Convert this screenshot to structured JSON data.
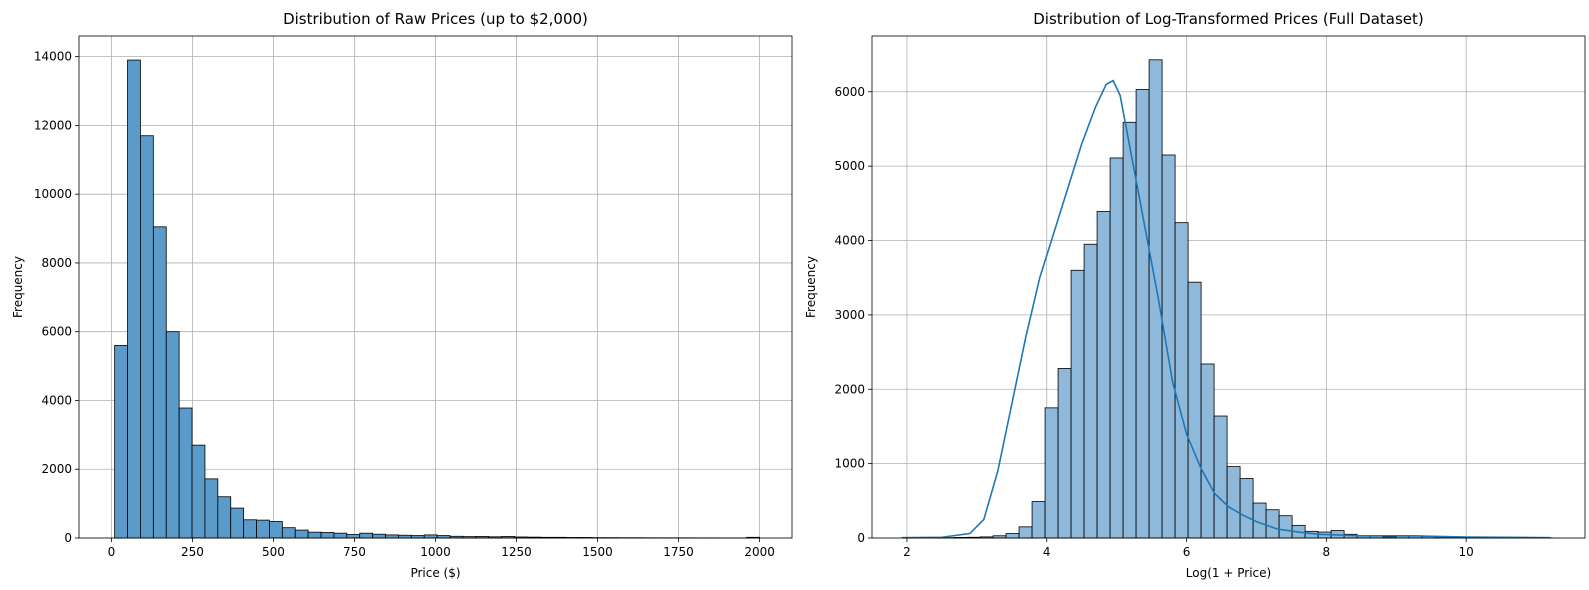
{
  "chart_data": [
    {
      "type": "bar",
      "title": "Distribution of Raw Prices (up to $2,000)",
      "xlabel": "Price ($)",
      "ylabel": "Frequency",
      "xlim": [
        -100,
        2100
      ],
      "ylim": [
        0,
        14600
      ],
      "xticks": [
        0,
        250,
        500,
        750,
        1000,
        1250,
        1500,
        1750,
        2000
      ],
      "yticks": [
        0,
        2000,
        4000,
        6000,
        8000,
        10000,
        12000,
        14000
      ],
      "grid": true,
      "bar_color": "#5b9bc9",
      "bin_edges_start": 10,
      "bin_width": 39.8,
      "values": [
        5600,
        13900,
        11700,
        9050,
        6000,
        3780,
        2700,
        1720,
        1200,
        870,
        530,
        520,
        480,
        300,
        230,
        170,
        160,
        140,
        100,
        140,
        110,
        90,
        80,
        70,
        90,
        70,
        50,
        40,
        45,
        35,
        45,
        30,
        25,
        20,
        20,
        15,
        15,
        10,
        10,
        8,
        8,
        6,
        5,
        5,
        5,
        4,
        4,
        3,
        3,
        20
      ]
    },
    {
      "type": "bar",
      "title": "Distribution of Log-Transformed Prices (Full Dataset)",
      "xlabel": "Log(1 + Price)",
      "ylabel": "Frequency",
      "xlim": [
        1.5,
        11.7
      ],
      "ylim": [
        0,
        6750
      ],
      "xticks": [
        2,
        4,
        6,
        8,
        10
      ],
      "yticks": [
        0,
        1000,
        2000,
        3000,
        4000,
        5000,
        6000
      ],
      "grid": true,
      "bar_color": "#8fb9db",
      "kde_color": "#1f77b4",
      "bin_edges_start": 1.93,
      "bin_width": 0.186,
      "values": [
        3,
        3,
        3,
        5,
        8,
        10,
        15,
        30,
        60,
        150,
        490,
        1750,
        2280,
        3600,
        3950,
        4390,
        5110,
        5590,
        6030,
        6430,
        5150,
        4240,
        3440,
        2340,
        1640,
        960,
        800,
        470,
        380,
        300,
        170,
        90,
        80,
        100,
        50,
        30,
        25,
        15,
        25,
        30,
        20,
        15,
        10,
        5,
        5,
        3,
        3,
        3,
        3,
        2
      ],
      "kde_x": [
        1.93,
        2.5,
        2.9,
        3.1,
        3.3,
        3.5,
        3.7,
        3.9,
        4.1,
        4.3,
        4.5,
        4.7,
        4.85,
        4.95,
        5.05,
        5.2,
        5.4,
        5.6,
        5.8,
        6.0,
        6.2,
        6.4,
        6.6,
        6.8,
        7.0,
        7.3,
        7.6,
        7.9,
        8.5,
        9.2,
        10.0,
        11.2
      ],
      "kde_y": [
        5,
        10,
        60,
        250,
        900,
        1800,
        2700,
        3500,
        4100,
        4700,
        5300,
        5800,
        6100,
        6150,
        5950,
        5200,
        4200,
        3200,
        2100,
        1400,
        950,
        600,
        420,
        310,
        220,
        120,
        80,
        50,
        30,
        30,
        12,
        5
      ]
    }
  ]
}
